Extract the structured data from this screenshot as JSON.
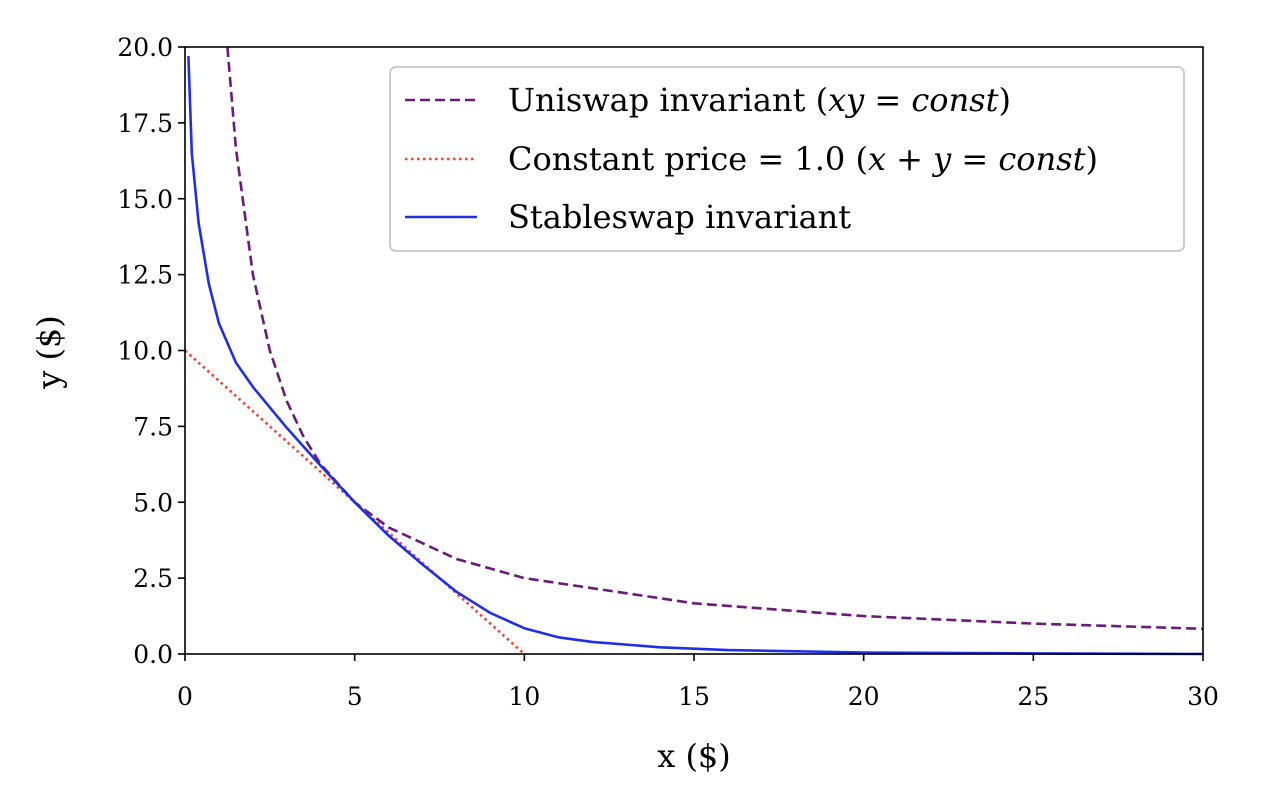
{
  "chart_data": {
    "type": "line",
    "title": "",
    "xlabel": "x ($)",
    "ylabel": "y ($)",
    "xlim": [
      0,
      30
    ],
    "ylim": [
      0,
      20
    ],
    "xticks": [
      "0",
      "5",
      "10",
      "15",
      "20",
      "25",
      "30"
    ],
    "yticks": [
      "0.0",
      "2.5",
      "5.0",
      "7.5",
      "10.0",
      "12.5",
      "15.0",
      "17.5",
      "20.0"
    ],
    "grid": false,
    "legend_position": "top-right",
    "series": [
      {
        "name": "Uniswap invariant (xy = const)",
        "color": "#6a1b7a",
        "style": "dashed",
        "x": [
          1.25,
          1.5,
          2,
          2.5,
          3,
          3.5,
          4,
          5,
          6,
          8,
          10,
          15,
          20,
          25,
          30
        ],
        "y": [
          20,
          16.67,
          12.5,
          10,
          8.33,
          7.14,
          6.25,
          5,
          4.17,
          3.13,
          2.5,
          1.67,
          1.25,
          1,
          0.83
        ]
      },
      {
        "name": "Constant price = 1.0 (x + y = const)",
        "color": "#ff3b2f",
        "style": "dotted",
        "x": [
          0,
          10
        ],
        "y": [
          10,
          0
        ]
      },
      {
        "name": "Stableswap invariant",
        "color": "#1f2fe6",
        "style": "solid",
        "x": [
          0.1,
          0.2,
          0.4,
          0.7,
          1,
          1.5,
          2,
          3,
          4,
          5,
          6,
          7,
          8,
          9,
          10,
          11,
          12,
          14,
          16,
          20,
          25,
          30
        ],
        "y": [
          19.7,
          16.5,
          14.2,
          12.2,
          10.9,
          9.6,
          8.8,
          7.45,
          6.2,
          5.0,
          3.9,
          2.95,
          2.05,
          1.35,
          0.85,
          0.55,
          0.4,
          0.22,
          0.13,
          0.05,
          0.02,
          0.0
        ]
      }
    ]
  },
  "legend": {
    "uniswap_main": "Uniswap invariant (",
    "uniswap_math": "xy = const",
    "uniswap_close": ")",
    "constant_main": "Constant price = 1.0 (",
    "constant_math": "x + y = const",
    "constant_close": ")",
    "stableswap": "Stableswap invariant"
  }
}
